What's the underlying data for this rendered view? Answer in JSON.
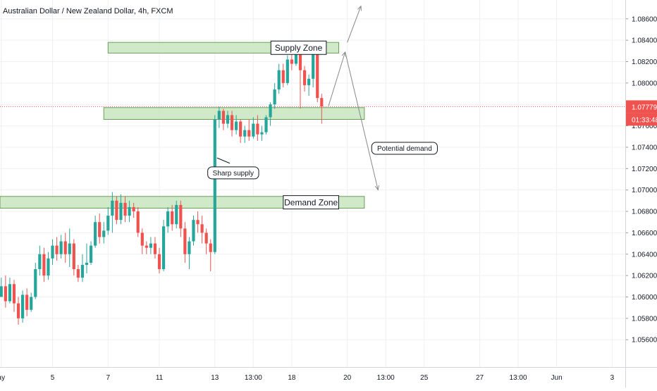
{
  "chart_data": {
    "type": "candlestick",
    "title": "Australian Dollar / New Zealand Dollar, 4h, FXCM",
    "last_price": "1.07779",
    "countdown": "01:33:48",
    "colors": {
      "up": "#26a69a",
      "down": "#ef5350",
      "zone_fill": "#c8e6c0",
      "zone_border": "#6a9f58",
      "last_line": "#ef5350",
      "grid": "#eef0f3",
      "text": "#131722",
      "arrow": "#888888"
    },
    "y_range": [
      1.0545,
      1.0875
    ],
    "y_ticks": [
      "1.05600",
      "1.05800",
      "1.06000",
      "1.06200",
      "1.06400",
      "1.06600",
      "1.06800",
      "1.07000",
      "1.07200",
      "1.07400",
      "1.07600",
      "1.07800",
      "1.08000",
      "1.08200",
      "1.08400",
      "1.08600"
    ],
    "x_ticks": [
      {
        "index": 0,
        "label": "ay"
      },
      {
        "index": 12,
        "label": "5"
      },
      {
        "index": 25,
        "label": "7"
      },
      {
        "index": 37,
        "label": "11"
      },
      {
        "index": 50,
        "label": "13"
      },
      {
        "index": 59,
        "label": "13:00"
      },
      {
        "index": 68,
        "label": "18"
      },
      {
        "index": 81,
        "label": "20"
      },
      {
        "index": 90,
        "label": "13:00"
      },
      {
        "index": 99,
        "label": "25"
      },
      {
        "index": 112,
        "label": "27"
      },
      {
        "index": 121,
        "label": "13:00"
      },
      {
        "index": 130,
        "label": "Jun"
      },
      {
        "index": 143,
        "label": "3"
      }
    ],
    "candles": [
      [
        1.06,
        1.061,
        1.06,
        1.0618
      ],
      [
        1.061,
        1.0596,
        1.059,
        1.062
      ],
      [
        1.0596,
        1.0612,
        1.0594,
        1.0618
      ],
      [
        1.0612,
        1.0594,
        1.0586,
        1.0616
      ],
      [
        1.0594,
        1.058,
        1.0574,
        1.06
      ],
      [
        1.058,
        1.0602,
        1.0576,
        1.0606
      ],
      [
        1.0602,
        1.0588,
        1.0582,
        1.0608
      ],
      [
        1.0588,
        1.06,
        1.0586,
        1.0604
      ],
      [
        1.06,
        1.0626,
        1.0598,
        1.0632
      ],
      [
        1.0626,
        1.064,
        1.062,
        1.0648
      ],
      [
        1.064,
        1.062,
        1.0614,
        1.0646
      ],
      [
        1.062,
        1.0636,
        1.0616,
        1.0642
      ],
      [
        1.0636,
        1.0648,
        1.063,
        1.0654
      ],
      [
        1.0648,
        1.064,
        1.0634,
        1.0656
      ],
      [
        1.064,
        1.0652,
        1.0636,
        1.0658
      ],
      [
        1.0652,
        1.064,
        1.0632,
        1.066
      ],
      [
        1.064,
        1.065,
        1.0628,
        1.0664
      ],
      [
        1.065,
        1.0626,
        1.062,
        1.0654
      ],
      [
        1.0626,
        1.0618,
        1.0614,
        1.063
      ],
      [
        1.0618,
        1.063,
        1.0614,
        1.064
      ],
      [
        1.063,
        1.0632,
        1.0622,
        1.065
      ],
      [
        1.0632,
        1.0648,
        1.063,
        1.0652
      ],
      [
        1.0648,
        1.067,
        1.0646,
        1.0676
      ],
      [
        1.067,
        1.0656,
        1.065,
        1.0678
      ],
      [
        1.0656,
        1.0662,
        1.065,
        1.067
      ],
      [
        1.0662,
        1.0676,
        1.0658,
        1.0684
      ],
      [
        1.0676,
        1.069,
        1.066,
        1.0698
      ],
      [
        1.069,
        1.0672,
        1.0668,
        1.0694
      ],
      [
        1.0672,
        1.0688,
        1.0668,
        1.0696
      ],
      [
        1.0688,
        1.0676,
        1.067,
        1.0694
      ],
      [
        1.0676,
        1.0684,
        1.067,
        1.069
      ],
      [
        1.0684,
        1.068,
        1.0674,
        1.0688
      ],
      [
        1.068,
        1.066,
        1.0656,
        1.0684
      ],
      [
        1.066,
        1.0648,
        1.064,
        1.0664
      ],
      [
        1.0648,
        1.0646,
        1.064,
        1.0652
      ],
      [
        1.0646,
        1.065,
        1.064,
        1.0656
      ],
      [
        1.065,
        1.064,
        1.0636,
        1.0656
      ],
      [
        1.064,
        1.0626,
        1.0622,
        1.0646
      ],
      [
        1.0626,
        1.0666,
        1.0624,
        1.0672
      ],
      [
        1.0666,
        1.068,
        1.066,
        1.0684
      ],
      [
        1.068,
        1.0668,
        1.0662,
        1.0686
      ],
      [
        1.0668,
        1.0686,
        1.0664,
        1.069
      ],
      [
        1.0686,
        1.0664,
        1.0656,
        1.069
      ],
      [
        1.0664,
        1.064,
        1.0632,
        1.067
      ],
      [
        1.064,
        1.0652,
        1.0626,
        1.0656
      ],
      [
        1.0652,
        1.0672,
        1.0648,
        1.0676
      ],
      [
        1.0672,
        1.0668,
        1.066,
        1.068
      ],
      [
        1.0668,
        1.066,
        1.065,
        1.0676
      ],
      [
        1.066,
        1.065,
        1.064,
        1.0664
      ],
      [
        1.065,
        1.0642,
        1.0624,
        1.0654
      ],
      [
        1.0642,
        1.0766,
        1.064,
        1.077
      ],
      [
        1.0766,
        1.0774,
        1.0758,
        1.0778
      ],
      [
        1.0774,
        1.0762,
        1.0756,
        1.0776
      ],
      [
        1.0762,
        1.077,
        1.0758,
        1.0774
      ],
      [
        1.077,
        1.0756,
        1.075,
        1.0774
      ],
      [
        1.0756,
        1.0764,
        1.0752,
        1.077
      ],
      [
        1.0764,
        1.075,
        1.0744,
        1.0766
      ],
      [
        1.075,
        1.0756,
        1.0744,
        1.076
      ],
      [
        1.0756,
        1.075,
        1.0746,
        1.0766
      ],
      [
        1.075,
        1.0762,
        1.0748,
        1.0768
      ],
      [
        1.0762,
        1.0752,
        1.0746,
        1.077
      ],
      [
        1.0752,
        1.0754,
        1.0746,
        1.076
      ],
      [
        1.0754,
        1.0768,
        1.0752,
        1.077
      ],
      [
        1.0768,
        1.078,
        1.076,
        1.0782
      ],
      [
        1.078,
        1.0794,
        1.0776,
        1.08
      ],
      [
        1.0794,
        1.0812,
        1.079,
        1.0818
      ],
      [
        1.0812,
        1.08,
        1.0796,
        1.0818
      ],
      [
        1.08,
        1.0822,
        1.0798,
        1.0826
      ],
      [
        1.0822,
        1.0818,
        1.0812,
        1.083
      ],
      [
        1.0818,
        1.083,
        1.0816,
        1.0834
      ],
      [
        1.083,
        1.0812,
        1.0776,
        1.0834
      ],
      [
        1.0812,
        1.0798,
        1.0792,
        1.0816
      ],
      [
        1.0798,
        1.0804,
        1.0788,
        1.0808
      ],
      [
        1.0804,
        1.083,
        1.0796,
        1.0834
      ],
      [
        1.083,
        1.0786,
        1.0782,
        1.0834
      ],
      [
        1.0786,
        1.0778,
        1.0762,
        1.079
      ]
    ],
    "zones": [
      {
        "label": "Supply Zone",
        "top": 1.0838,
        "bottom": 1.0828,
        "start_index": 25,
        "end_index": 79
      },
      {
        "label": "",
        "top": 1.0777,
        "bottom": 1.0766,
        "start_index": 24,
        "end_index": 85
      },
      {
        "label": "Demand Zone",
        "top": 1.0694,
        "bottom": 1.0683,
        "start_index": -1,
        "end_index": 85
      }
    ],
    "annotations": [
      {
        "text": "Sharp supply"
      },
      {
        "text": "Potential demand"
      }
    ]
  }
}
